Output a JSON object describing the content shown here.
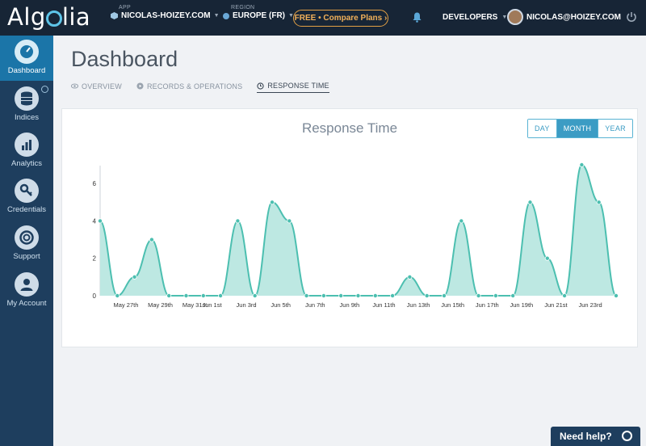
{
  "brand": {
    "logo_text_pre": "Alg",
    "logo_text_post": "lia"
  },
  "topbar": {
    "app_label": "APP",
    "app_value": "NICOLAS-HOIZEY.COM",
    "region_label": "REGION",
    "region_value": "EUROPE (FR)",
    "free_button": "FREE • Compare Plans ›",
    "developers": "DEVELOPERS",
    "user_email": "NICOLAS@HOIZEY.COM"
  },
  "sidebar": {
    "items": [
      {
        "label": "Dashboard",
        "icon": "gauge-icon"
      },
      {
        "label": "Indices",
        "icon": "database-icon"
      },
      {
        "label": "Analytics",
        "icon": "bar-chart-icon"
      },
      {
        "label": "Credentials",
        "icon": "key-icon"
      },
      {
        "label": "Support",
        "icon": "lifebuoy-icon"
      },
      {
        "label": "My Account",
        "icon": "user-icon"
      }
    ]
  },
  "page": {
    "title": "Dashboard",
    "tabs": [
      {
        "label": "OVERVIEW",
        "icon": "eye-icon"
      },
      {
        "label": "RECORDS & OPERATIONS",
        "icon": "play-icon"
      },
      {
        "label": "RESPONSE TIME",
        "icon": "clock-icon"
      }
    ],
    "active_tab": "RESPONSE TIME"
  },
  "periods": [
    "DAY",
    "MONTH",
    "YEAR"
  ],
  "active_period": "MONTH",
  "help": {
    "label": "Need help?"
  },
  "colors": {
    "accent": "#3c9cc4",
    "chart_line": "#4cbfb0",
    "chart_fill": "#bde8e2",
    "sidebar": "#1e3e5e",
    "topbar": "#172536"
  },
  "chart_data": {
    "type": "area",
    "title": "Response Time",
    "xlabel": "",
    "ylabel": "",
    "ylim": [
      0,
      7
    ],
    "yticks": [
      0,
      2,
      4,
      6
    ],
    "x_tick_labels": [
      "May 27th",
      "May 29th",
      "May 31st",
      "Jun 1st",
      "Jun 3rd",
      "Jun 5th",
      "Jun 7th",
      "Jun 9th",
      "Jun 11th",
      "Jun 13th",
      "Jun 15th",
      "Jun 17th",
      "Jun 19th",
      "Jun 21st",
      "Jun 23rd"
    ],
    "x_tick_positions": [
      1.5,
      3.5,
      5.5,
      6.5,
      8.5,
      10.5,
      12.5,
      14.5,
      16.5,
      18.5,
      20.5,
      22.5,
      24.5,
      26.5,
      28.5
    ],
    "series": [
      {
        "values": [
          4,
          0,
          1,
          3,
          0,
          0,
          0,
          0,
          4,
          0,
          5,
          4,
          0,
          0,
          0,
          0,
          0,
          0,
          1,
          0,
          0,
          4,
          0,
          0,
          0,
          5,
          2,
          0,
          7,
          5,
          0
        ]
      }
    ],
    "grid": false
  }
}
